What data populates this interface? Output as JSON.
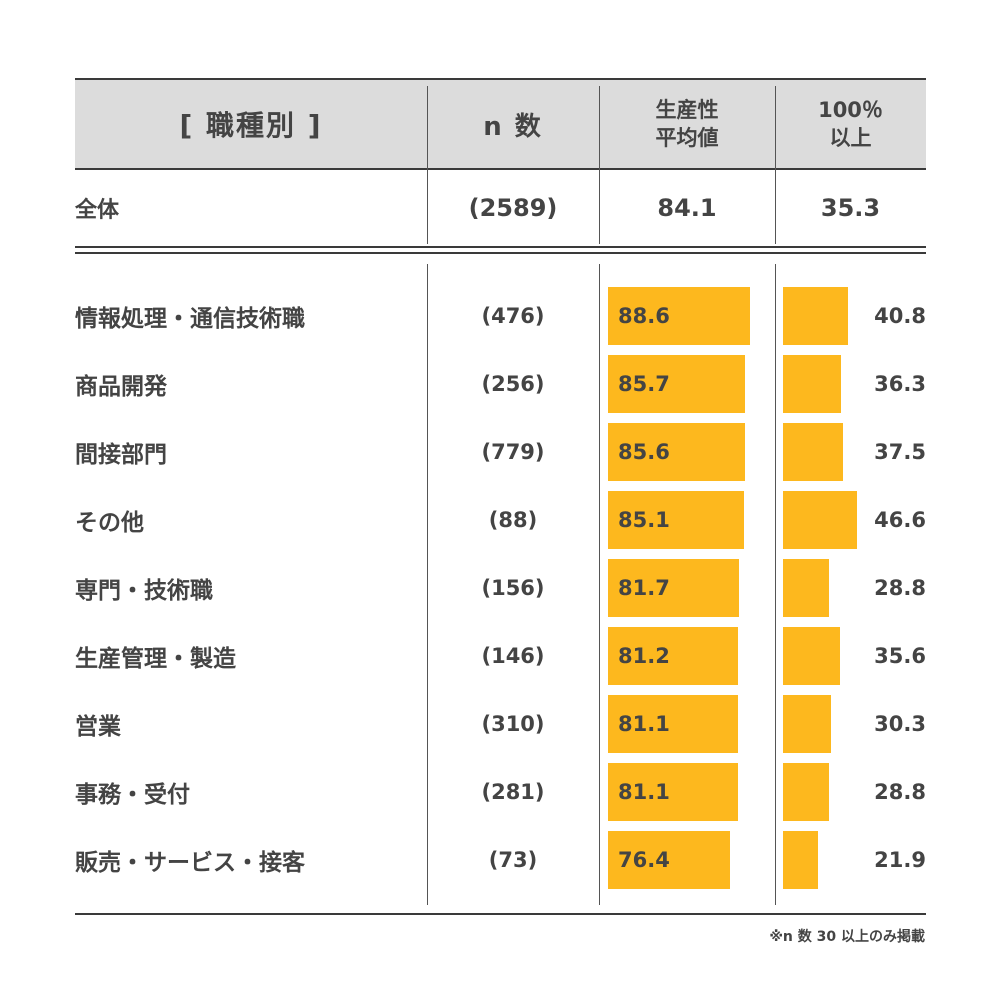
{
  "header": {
    "title": "[ 職種別 ]",
    "n_label": "n 数",
    "col1_line1": "生産性",
    "col1_line2": "平均値",
    "col2_line1": "100％",
    "col2_line2": "以上"
  },
  "total": {
    "label": "全体",
    "n": "(2589)",
    "avg": "84.1",
    "pct": "35.3"
  },
  "chart_data": {
    "type": "bar",
    "categories": [
      "情報処理・通信技術職",
      "商品開発",
      "間接部門",
      "その他",
      "専門・技術職",
      "生産管理・製造",
      "営業",
      "事務・受付",
      "販売・サービス・接客"
    ],
    "n": [
      "(476)",
      "(256)",
      "(779)",
      "(88)",
      "(156)",
      "(146)",
      "(310)",
      "(281)",
      "(73)"
    ],
    "series": [
      {
        "name": "生産性平均値",
        "values": [
          88.6,
          85.7,
          85.6,
          85.1,
          81.7,
          81.2,
          81.1,
          81.1,
          76.4
        ]
      },
      {
        "name": "100％以上",
        "values": [
          40.8,
          36.3,
          37.5,
          46.6,
          28.8,
          35.6,
          30.3,
          28.8,
          21.9
        ]
      }
    ],
    "bar_color": "#fdb81e"
  },
  "footnote": "※n 数 30 以上のみ掲載"
}
